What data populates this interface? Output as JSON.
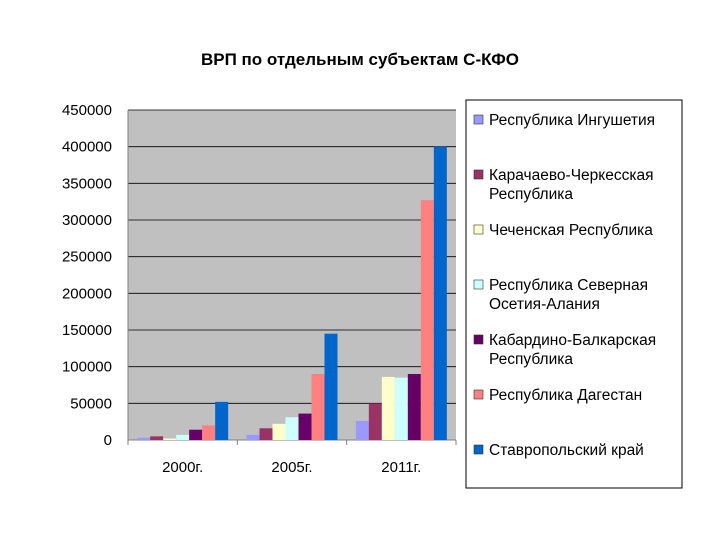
{
  "chart_data": {
    "type": "bar",
    "title": "ВРП по отдельным субъектам С-КФО",
    "xlabel": "",
    "ylabel": "",
    "ylim": [
      0,
      450000
    ],
    "yticks": [
      "0",
      "50000",
      "100000",
      "150000",
      "200000",
      "250000",
      "300000",
      "350000",
      "400000",
      "450000"
    ],
    "categories": [
      "2000г.",
      "2005г.",
      "2011г."
    ],
    "grid": true,
    "legend_position": "right",
    "series": [
      {
        "name": "Республика Ингушетия",
        "color": "#9999ff",
        "values": [
          3000,
          7000,
          26000
        ]
      },
      {
        "name": "Карачаево-Черкесская Республика",
        "color": "#993366",
        "values": [
          5000,
          16000,
          50000
        ]
      },
      {
        "name": "Чеченская Республика",
        "color": "#ffffcc",
        "values": [
          2000,
          22000,
          86000
        ]
      },
      {
        "name": "Республика Северная Осетия-Алания",
        "color": "#ccffff",
        "values": [
          7000,
          31000,
          85000
        ]
      },
      {
        "name": "Кабардино-Балкарская Республика",
        "color": "#660066",
        "values": [
          14000,
          36000,
          90000
        ]
      },
      {
        "name": "Республика Дагестан",
        "color": "#ff8080",
        "values": [
          20000,
          90000,
          327000
        ]
      },
      {
        "name": "Ставропольский край",
        "color": "#0066cc",
        "values": [
          52000,
          145000,
          400000
        ]
      }
    ]
  },
  "legend_lines": [
    [
      "Республика Ингушетия"
    ],
    [
      "Карачаево-Черкесская",
      "Республика"
    ],
    [
      "Чеченская Республика"
    ],
    [
      "Республика Северная",
      "Осетия-Алания"
    ],
    [
      "Кабардино-Балкарская",
      "Республика"
    ],
    [
      "Республика Дагестан"
    ],
    [
      "Ставропольский край"
    ]
  ]
}
